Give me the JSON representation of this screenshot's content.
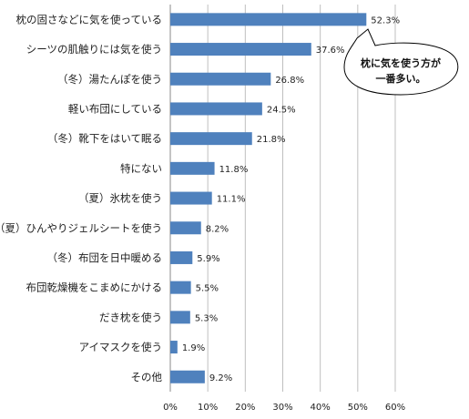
{
  "chart_data": {
    "type": "bar",
    "orientation": "horizontal",
    "categories": [
      "枕の固さなどに気を使っている",
      "シーツの肌触りには気を使う",
      "（冬）湯たんぽを使う",
      "軽い布団にしている",
      "（冬）靴下をはいて眠る",
      "特にない",
      "（夏）氷枕を使う",
      "（夏）ひんやりジェルシートを使う",
      "（冬）布団を日中暖める",
      "布団乾燥機をこまめにかける",
      "だき枕を使う",
      "アイマスクを使う",
      "その他"
    ],
    "values": [
      52.3,
      37.6,
      26.8,
      24.5,
      21.8,
      11.8,
      11.1,
      8.2,
      5.9,
      5.5,
      5.3,
      1.9,
      9.2
    ],
    "value_labels": [
      "52.3%",
      "37.6%",
      "26.8%",
      "24.5%",
      "21.8%",
      "11.8%",
      "11.1%",
      "8.2%",
      "5.9%",
      "5.5%",
      "5.3%",
      "1.9%",
      "9.2%"
    ],
    "xlim": [
      0,
      60
    ],
    "xticks": [
      0,
      10,
      20,
      30,
      40,
      50,
      60
    ],
    "xtick_labels": [
      "0%",
      "10%",
      "20%",
      "30%",
      "40%",
      "50%",
      "60%"
    ],
    "grid": "vertical",
    "bar_color": "#4f81bd",
    "grid_color": "#bfbfbf",
    "title": "",
    "xlabel": "",
    "ylabel": "",
    "annotation": {
      "line1": "枕に気を使う方が",
      "line2": "一番多い。"
    }
  }
}
